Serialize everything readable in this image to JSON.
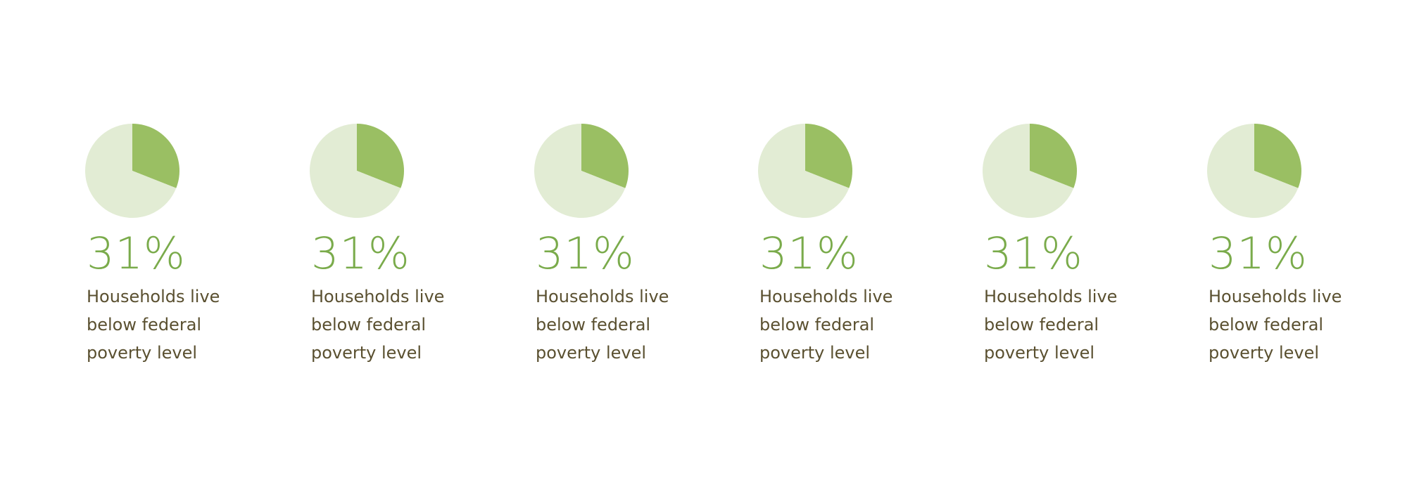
{
  "colors": {
    "slice": "#9abf63",
    "remainder": "#e2ecd4",
    "value_text": "#7aab4b",
    "caption_text": "#5a5030"
  },
  "chart_data": [
    {
      "type": "pie",
      "values": [
        31,
        69
      ],
      "value_label": "31%",
      "caption": "Households live below federal poverty level"
    },
    {
      "type": "pie",
      "values": [
        31,
        69
      ],
      "value_label": "31%",
      "caption": "Households live below federal poverty level"
    },
    {
      "type": "pie",
      "values": [
        31,
        69
      ],
      "value_label": "31%",
      "caption": "Households live below federal poverty level"
    },
    {
      "type": "pie",
      "values": [
        31,
        69
      ],
      "value_label": "31%",
      "caption": "Households live below federal poverty level"
    },
    {
      "type": "pie",
      "values": [
        31,
        69
      ],
      "value_label": "31%",
      "caption": "Households live below federal poverty level"
    },
    {
      "type": "pie",
      "values": [
        31,
        69
      ],
      "value_label": "31%",
      "caption": "Households live below federal poverty level"
    }
  ]
}
